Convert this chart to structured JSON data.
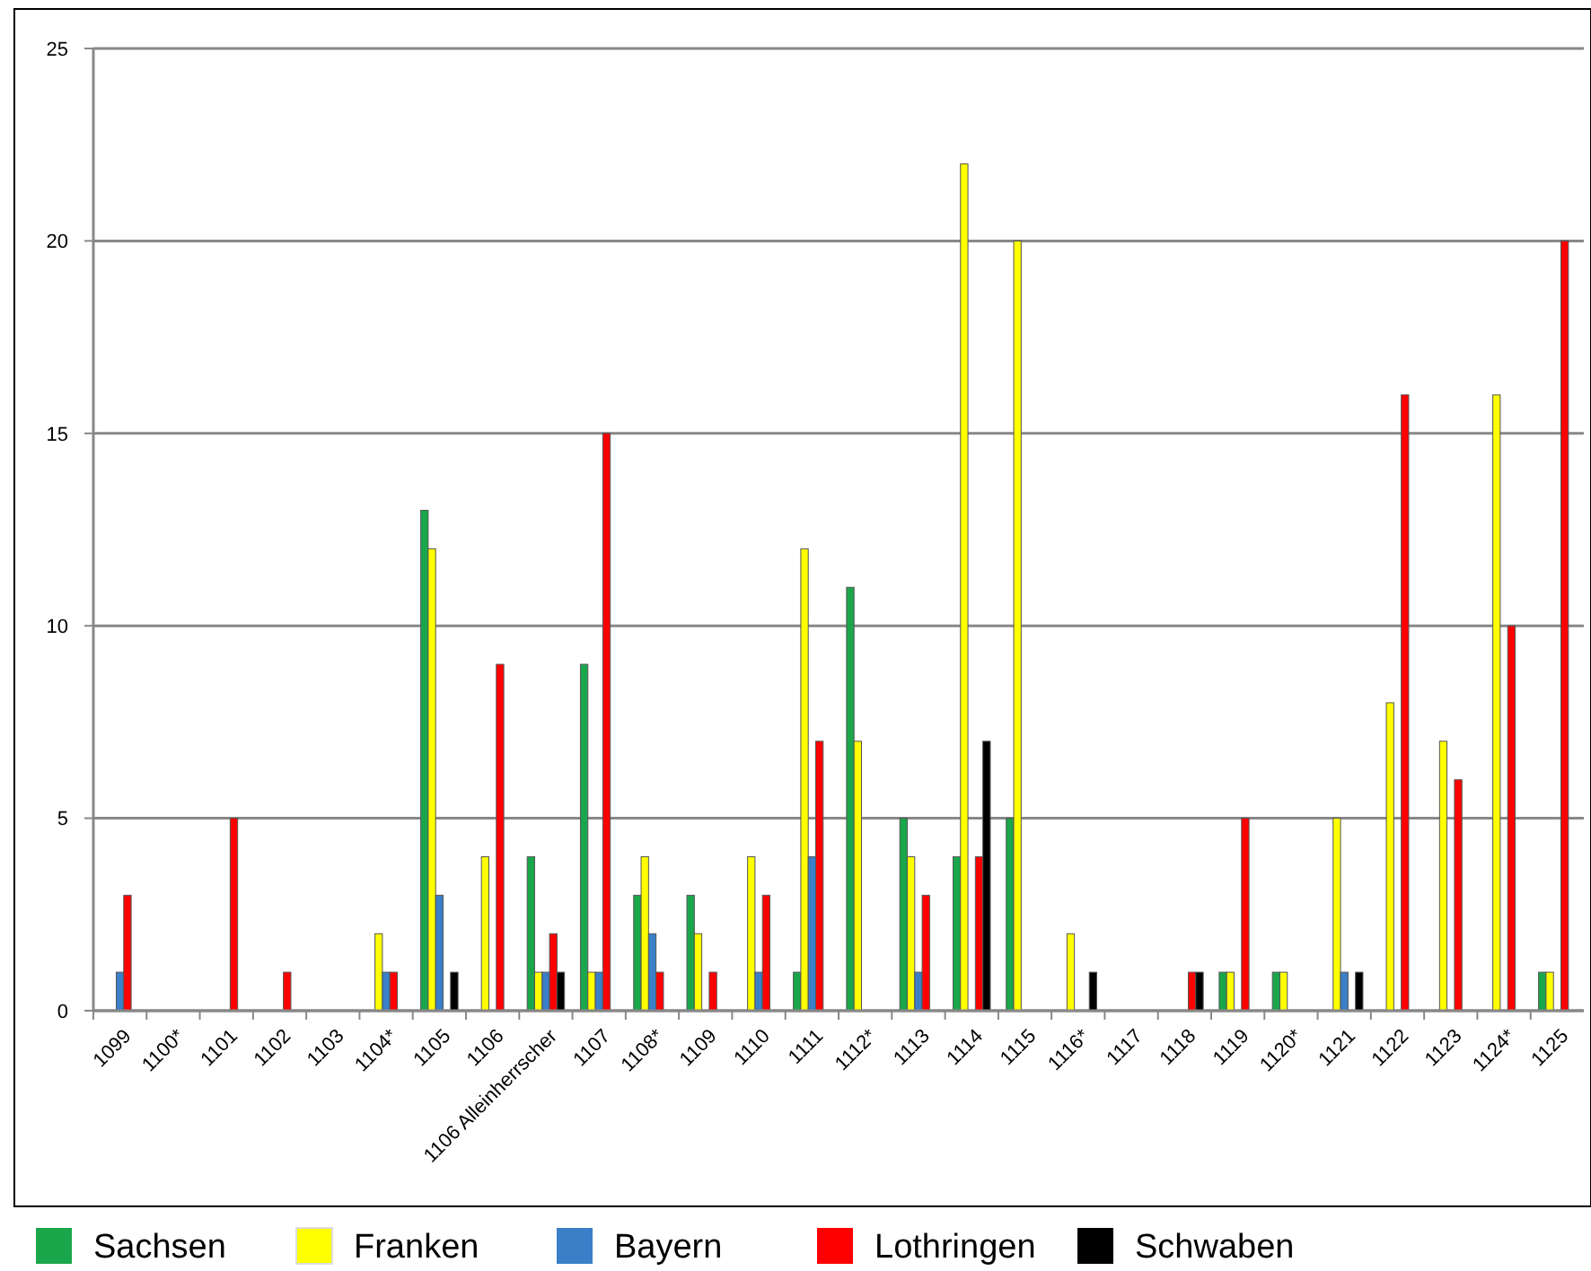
{
  "chart_data": {
    "type": "bar",
    "categories": [
      "1099",
      "1100*",
      "1101",
      "1102",
      "1103",
      "1104*",
      "1105",
      "1106",
      "1106 Alleinherrscher",
      "1107",
      "1108*",
      "1109",
      "1110",
      "1111",
      "1112*",
      "1113",
      "1114",
      "1115",
      "1116*",
      "1117",
      "1118",
      "1119",
      "1120*",
      "1121",
      "1122",
      "1123",
      "1124*",
      "1125"
    ],
    "series": [
      {
        "name": "Sachsen",
        "color": "#1aa64a",
        "values": [
          0,
          0,
          0,
          0,
          0,
          0,
          13,
          0,
          4,
          9,
          3,
          3,
          0,
          1,
          11,
          5,
          4,
          5,
          0,
          0,
          0,
          1,
          1,
          0,
          0,
          0,
          0,
          1
        ]
      },
      {
        "name": "Franken",
        "color": "#ffff00",
        "values": [
          0,
          0,
          0,
          0,
          0,
          2,
          12,
          4,
          1,
          1,
          4,
          2,
          4,
          12,
          7,
          4,
          22,
          20,
          2,
          0,
          0,
          1,
          1,
          5,
          8,
          7,
          16,
          1
        ]
      },
      {
        "name": "Bayern",
        "color": "#3a7fc8",
        "values": [
          1,
          0,
          0,
          0,
          0,
          1,
          3,
          0,
          1,
          1,
          2,
          0,
          1,
          4,
          0,
          1,
          0,
          0,
          0,
          0,
          0,
          0,
          0,
          1,
          0,
          0,
          0,
          0
        ]
      },
      {
        "name": "Lothringen",
        "color": "#ff0000",
        "values": [
          3,
          0,
          5,
          1,
          0,
          1,
          0,
          9,
          2,
          15,
          1,
          1,
          3,
          7,
          0,
          3,
          4,
          0,
          0,
          0,
          1,
          5,
          0,
          0,
          16,
          6,
          10,
          20
        ]
      },
      {
        "name": "Schwaben",
        "color": "#000000",
        "values": [
          0,
          0,
          0,
          0,
          0,
          0,
          1,
          0,
          1,
          0,
          0,
          0,
          0,
          0,
          0,
          0,
          7,
          0,
          1,
          0,
          1,
          0,
          0,
          1,
          0,
          0,
          0,
          0
        ]
      }
    ],
    "ylim": [
      0,
      25
    ],
    "yticks": [
      0,
      5,
      10,
      15,
      20,
      25
    ],
    "grid": "y",
    "legend": "bottom"
  }
}
